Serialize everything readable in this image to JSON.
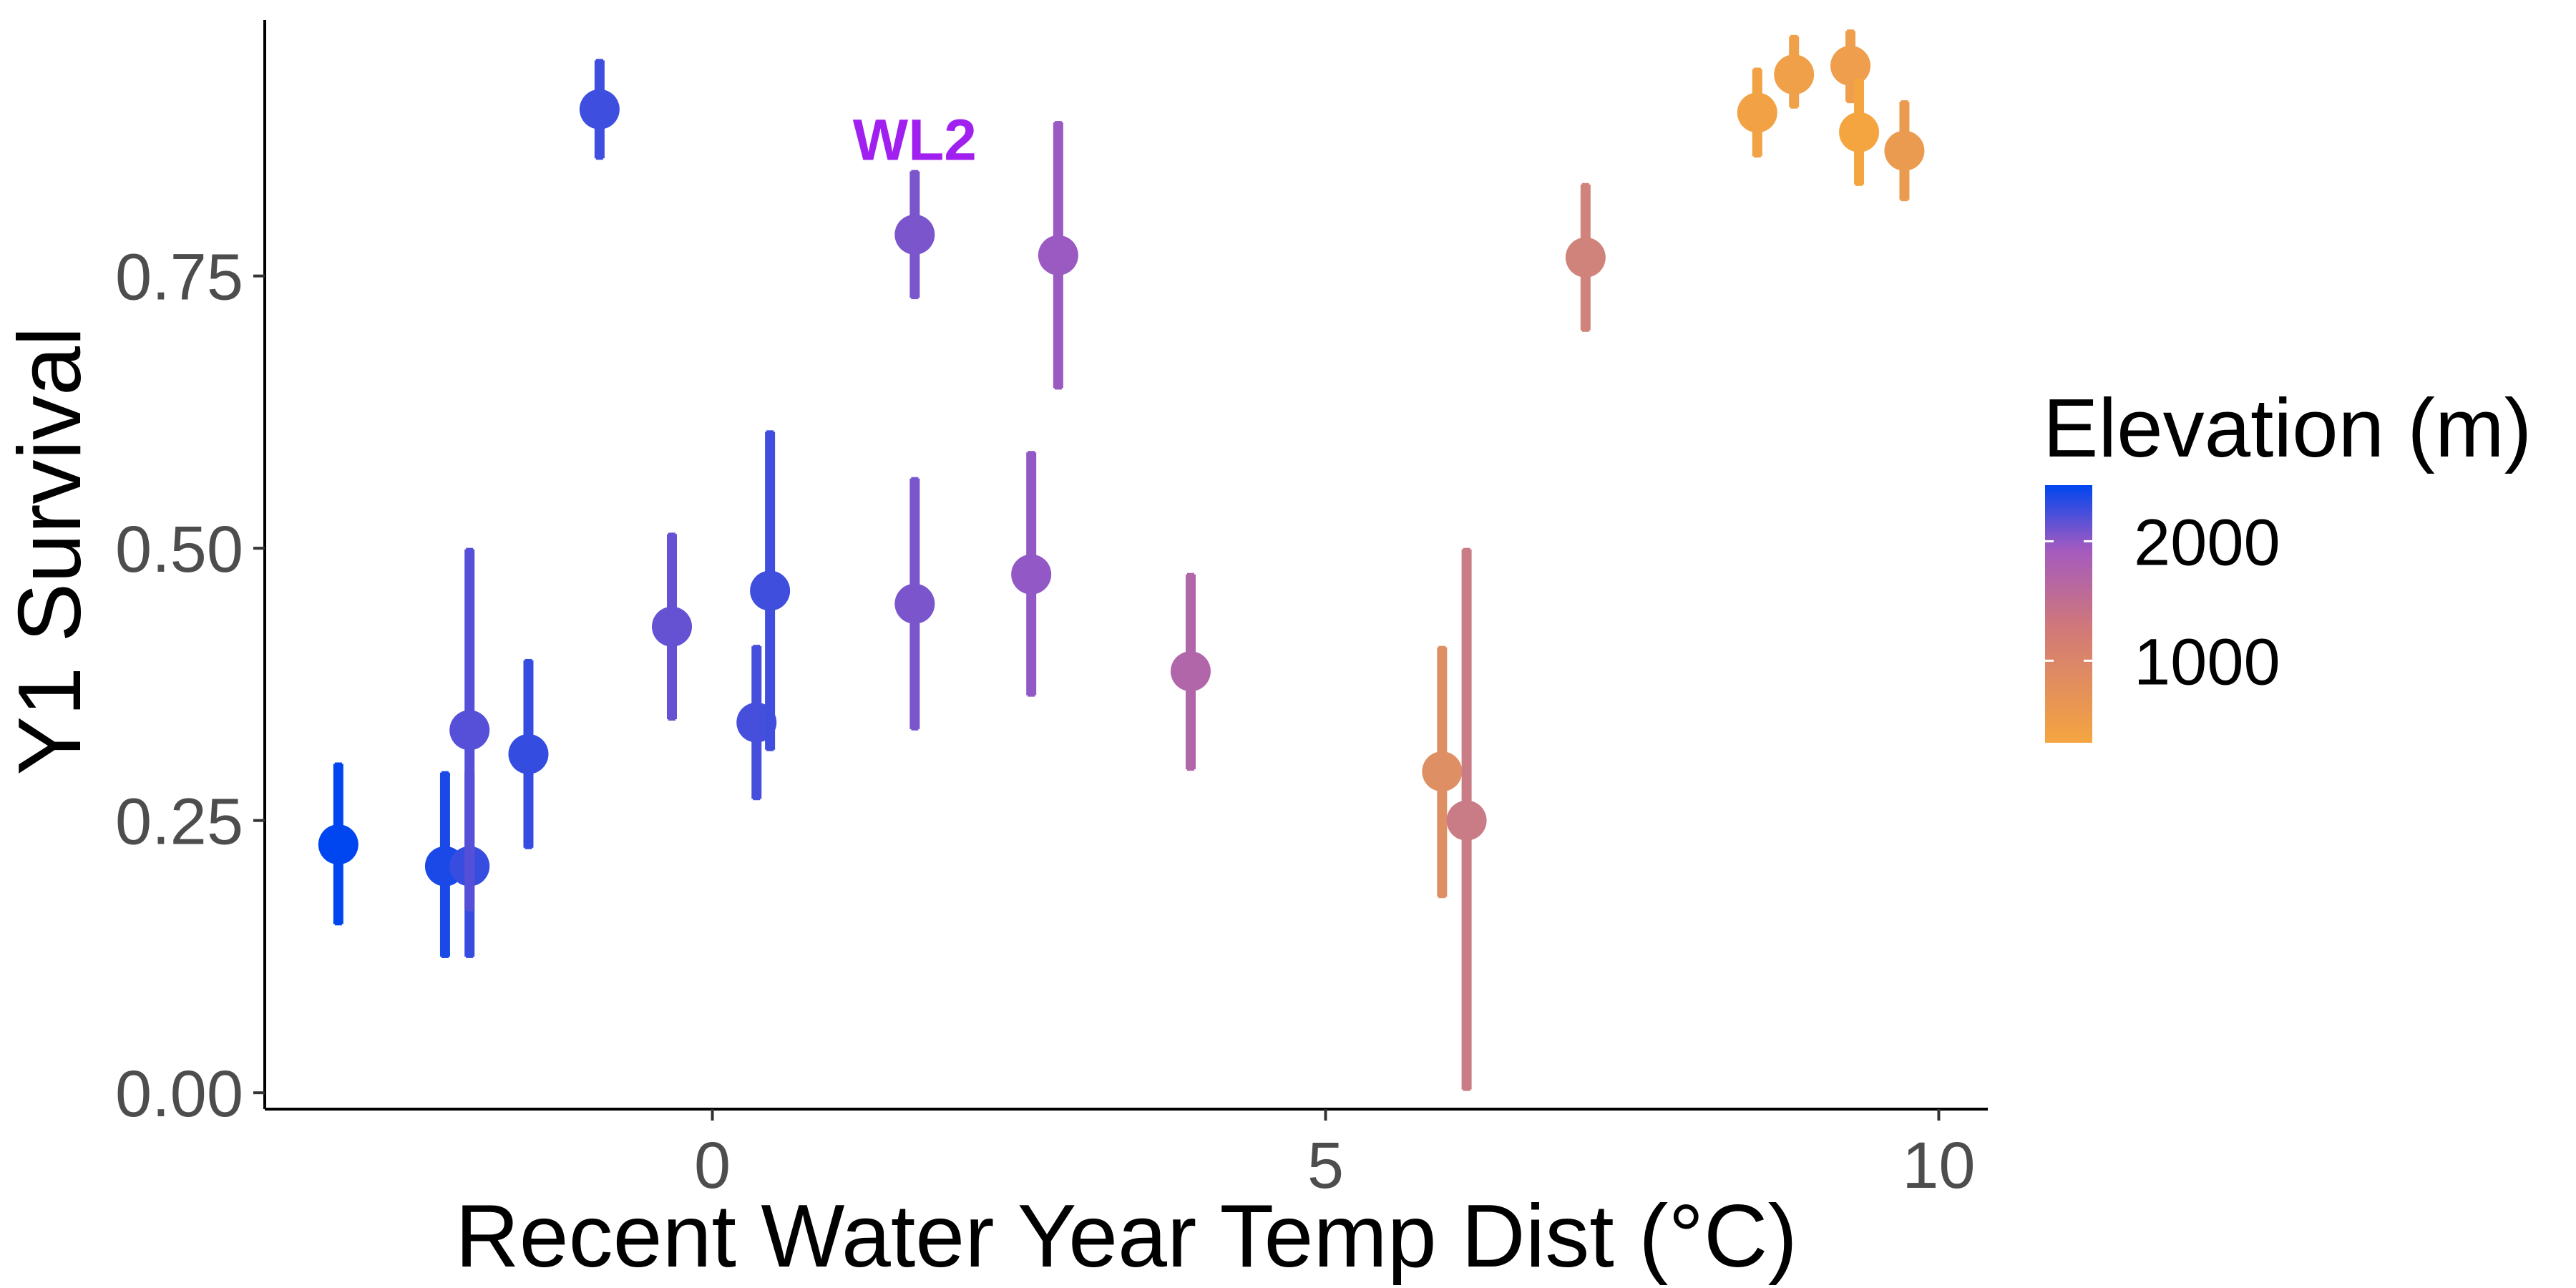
{
  "chart_data": {
    "type": "scatter",
    "xlabel": "Recent Water Year Temp Dist (°C)",
    "ylabel": "Y1 Survival",
    "xlim": [
      -3.65,
      10.4
    ],
    "ylim": [
      -0.015,
      0.985
    ],
    "x_ticks": [
      0,
      5,
      10
    ],
    "x_tick_labels": [
      "0",
      "5",
      "10"
    ],
    "y_ticks": [
      0,
      0.25,
      0.5,
      0.75
    ],
    "y_tick_labels": [
      "0.00",
      "0.25",
      "0.50",
      "0.75"
    ],
    "grid": false,
    "legend": {
      "title": "Elevation (m)",
      "position": "right",
      "type": "colorbar",
      "range": [
        313,
        2470
      ],
      "ticks": [
        1000,
        2000
      ],
      "tick_labels": [
        "1000",
        "2000"
      ],
      "color_low": "#F5A540",
      "color_mid": "#A45ABF",
      "color_high": "#0046F0"
    },
    "annotations": [
      {
        "text": "WL2",
        "x": 1.65,
        "y": 0.875,
        "color": "#A020F0"
      }
    ],
    "points": [
      {
        "x": -3.05,
        "y": 0.228,
        "lo": 0.155,
        "hi": 0.302,
        "elev": 2470
      },
      {
        "x": -2.18,
        "y": 0.208,
        "lo": 0.125,
        "hi": 0.294,
        "elev": 2373
      },
      {
        "x": -1.98,
        "y": 0.208,
        "lo": 0.125,
        "hi": 0.294,
        "elev": 2266
      },
      {
        "x": -1.98,
        "y": 0.333,
        "lo": 0.168,
        "hi": 0.499,
        "elev": 2158
      },
      {
        "x": -1.5,
        "y": 0.311,
        "lo": 0.225,
        "hi": 0.397,
        "elev": 2274
      },
      {
        "x": -0.92,
        "y": 0.903,
        "lo": 0.858,
        "hi": 0.948,
        "elev": 2243
      },
      {
        "x": -0.33,
        "y": 0.428,
        "lo": 0.343,
        "hi": 0.513,
        "elev": 2102
      },
      {
        "x": 0.36,
        "y": 0.34,
        "lo": 0.27,
        "hi": 0.41,
        "elev": 2213
      },
      {
        "x": 0.47,
        "y": 0.461,
        "lo": 0.315,
        "hi": 0.607,
        "elev": 2236
      },
      {
        "x": 1.65,
        "y": 0.788,
        "lo": 0.73,
        "hi": 0.846,
        "elev": 2020
      },
      {
        "x": 1.65,
        "y": 0.449,
        "lo": 0.334,
        "hi": 0.564,
        "elev": 2020
      },
      {
        "x": 2.6,
        "y": 0.476,
        "lo": 0.365,
        "hi": 0.588,
        "elev": 1934
      },
      {
        "x": 2.82,
        "y": 0.769,
        "lo": 0.647,
        "hi": 0.891,
        "elev": 1900
      },
      {
        "x": 3.9,
        "y": 0.387,
        "lo": 0.297,
        "hi": 0.476,
        "elev": 1613
      },
      {
        "x": 5.95,
        "y": 0.295,
        "lo": 0.18,
        "hi": 0.409,
        "elev": 748
      },
      {
        "x": 6.15,
        "y": 0.25,
        "lo": 0.003,
        "hi": 0.499,
        "elev": 1158
      },
      {
        "x": 7.12,
        "y": 0.767,
        "lo": 0.7,
        "hi": 0.834,
        "elev": 1020
      },
      {
        "x": 8.52,
        "y": 0.9,
        "lo": 0.86,
        "hi": 0.94,
        "elev": 379
      },
      {
        "x": 8.82,
        "y": 0.935,
        "lo": 0.905,
        "hi": 0.97,
        "elev": 421
      },
      {
        "x": 9.28,
        "y": 0.943,
        "lo": 0.91,
        "hi": 0.975,
        "elev": 454
      },
      {
        "x": 9.35,
        "y": 0.882,
        "lo": 0.834,
        "hi": 0.93,
        "elev": 313
      },
      {
        "x": 9.72,
        "y": 0.865,
        "lo": 0.82,
        "hi": 0.91,
        "elev": 511
      }
    ]
  }
}
